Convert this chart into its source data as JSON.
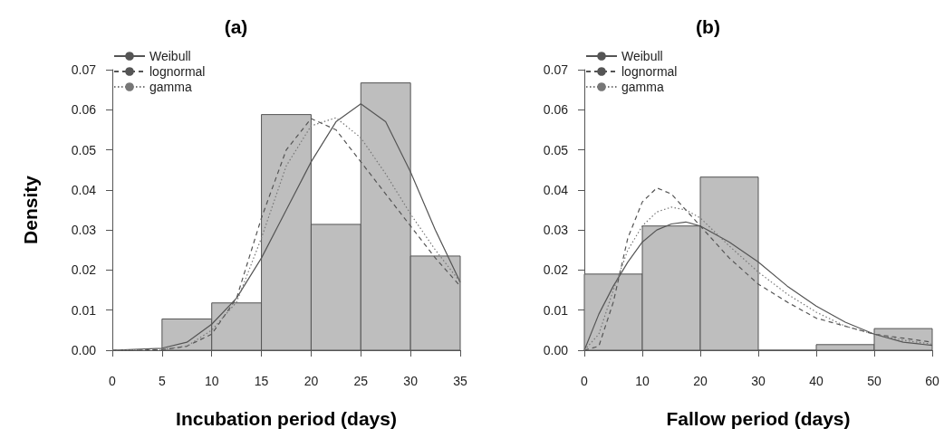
{
  "chart_data": [
    {
      "type": "histogram",
      "title": "(a)",
      "xlabel": "Incubation period (days)",
      "ylabel": "Density",
      "bins": [
        5,
        10,
        15,
        20,
        25,
        30,
        35
      ],
      "values": [
        0.0078,
        0.0118,
        0.0588,
        0.0314,
        0.0667,
        0.0235
      ],
      "color": "#bebebe",
      "xlim": [
        0,
        35
      ],
      "xticks": [
        0,
        5,
        10,
        15,
        20,
        25,
        30,
        35
      ],
      "ylim": [
        0,
        0.07
      ],
      "yticks": [
        {
          "value": 0,
          "label": "0.00"
        },
        {
          "value": 0.01,
          "label": "0.01"
        },
        {
          "value": 0.02,
          "label": "0.02"
        },
        {
          "value": 0.03,
          "label": "0.03"
        },
        {
          "value": 0.04,
          "label": "0.04"
        },
        {
          "value": 0.05,
          "label": "0.05"
        },
        {
          "value": 0.06,
          "label": "0.06"
        },
        {
          "value": 0.07,
          "label": "0.07"
        }
      ],
      "legend": "top left",
      "series": [
        {
          "name": "Weibull",
          "type": "line",
          "color": "#555555",
          "line_style": "solid",
          "x": [
            0,
            5,
            7.5,
            10,
            12.5,
            15,
            17.5,
            20,
            22.5,
            25,
            27.5,
            30,
            32.5,
            35
          ],
          "values": [
            0,
            0.0005,
            0.002,
            0.0065,
            0.013,
            0.023,
            0.035,
            0.047,
            0.057,
            0.0615,
            0.057,
            0.0445,
            0.03,
            0.017
          ]
        },
        {
          "name": "lognormal",
          "type": "line",
          "color": "#555555",
          "line_style": "dashed",
          "x": [
            0,
            5,
            7.5,
            10,
            12.5,
            15,
            17.5,
            20,
            22.5,
            25,
            27.5,
            30,
            32.5,
            35
          ],
          "values": [
            0,
            0.0001,
            0.001,
            0.004,
            0.013,
            0.033,
            0.05,
            0.0578,
            0.055,
            0.047,
            0.039,
            0.031,
            0.023,
            0.016
          ]
        },
        {
          "name": "gamma",
          "type": "line",
          "color": "#777777",
          "line_style": "dotted",
          "x": [
            0,
            5,
            7.5,
            10,
            12.5,
            15,
            17.5,
            20,
            22.5,
            25,
            27.5,
            30,
            32.5,
            35
          ],
          "values": [
            0,
            0.0002,
            0.001,
            0.005,
            0.012,
            0.028,
            0.046,
            0.056,
            0.058,
            0.053,
            0.044,
            0.034,
            0.025,
            0.017
          ]
        }
      ]
    },
    {
      "type": "histogram",
      "title": "(b)",
      "xlabel": "Fallow period (days)",
      "bins": [
        0,
        10,
        20,
        30,
        40,
        50,
        60
      ],
      "values": [
        0.019,
        0.031,
        0.0432,
        0,
        0.0014,
        0.0054
      ],
      "color": "#bebebe",
      "xlim": [
        0,
        60
      ],
      "xticks": [
        0,
        10,
        20,
        30,
        40,
        50,
        60
      ],
      "ylim": [
        0,
        0.07
      ],
      "yticks": [
        {
          "value": 0,
          "label": "0.00"
        },
        {
          "value": 0.01,
          "label": "0.01"
        },
        {
          "value": 0.02,
          "label": "0.02"
        },
        {
          "value": 0.03,
          "label": "0.03"
        },
        {
          "value": 0.04,
          "label": "0.04"
        },
        {
          "value": 0.05,
          "label": "0.05"
        },
        {
          "value": 0.06,
          "label": "0.06"
        },
        {
          "value": 0.07,
          "label": "0.07"
        }
      ],
      "legend": "top left",
      "series": [
        {
          "name": "Weibull",
          "type": "line",
          "color": "#555555",
          "line_style": "solid",
          "x": [
            0,
            2.5,
            5,
            7.5,
            10,
            12.5,
            15,
            17.5,
            20,
            25,
            30,
            35,
            40,
            45,
            50,
            55,
            60
          ],
          "values": [
            0,
            0.009,
            0.016,
            0.022,
            0.027,
            0.03,
            0.0315,
            0.032,
            0.031,
            0.027,
            0.022,
            0.016,
            0.011,
            0.007,
            0.004,
            0.002,
            0.0012
          ]
        },
        {
          "name": "lognormal",
          "type": "line",
          "color": "#555555",
          "line_style": "dashed",
          "x": [
            0,
            2.5,
            5,
            7.5,
            10,
            12.5,
            15,
            17.5,
            20,
            25,
            30,
            35,
            40,
            45,
            50,
            55,
            60
          ],
          "values": [
            0,
            0.001,
            0.012,
            0.028,
            0.037,
            0.0405,
            0.039,
            0.035,
            0.031,
            0.023,
            0.0165,
            0.012,
            0.008,
            0.006,
            0.004,
            0.003,
            0.002
          ]
        },
        {
          "name": "gamma",
          "type": "line",
          "color": "#777777",
          "line_style": "dotted",
          "x": [
            0,
            2.5,
            5,
            7.5,
            10,
            12.5,
            15,
            17.5,
            20,
            25,
            30,
            35,
            40,
            45,
            50,
            55,
            60
          ],
          "values": [
            0,
            0.004,
            0.015,
            0.025,
            0.031,
            0.0345,
            0.0357,
            0.035,
            0.033,
            0.026,
            0.0195,
            0.014,
            0.0095,
            0.006,
            0.004,
            0.0025,
            0.0015
          ]
        }
      ]
    }
  ]
}
